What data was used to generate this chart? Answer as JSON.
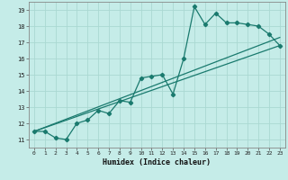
{
  "xlabel": "Humidex (Indice chaleur)",
  "bg_color": "#c5ece8",
  "grid_color": "#aad8d2",
  "line_color": "#1a7a6e",
  "xlim": [
    -0.5,
    23.5
  ],
  "ylim": [
    10.5,
    19.5
  ],
  "xticks": [
    0,
    1,
    2,
    3,
    4,
    5,
    6,
    7,
    8,
    9,
    10,
    11,
    12,
    13,
    14,
    15,
    16,
    17,
    18,
    19,
    20,
    21,
    22,
    23
  ],
  "yticks": [
    11,
    12,
    13,
    14,
    15,
    16,
    17,
    18,
    19
  ],
  "zigzag_x": [
    0,
    1,
    2,
    3,
    4,
    5,
    6,
    7,
    8,
    9,
    10,
    11,
    12,
    13,
    14,
    15,
    16,
    17,
    18,
    19,
    20,
    21,
    22,
    23
  ],
  "zigzag_y": [
    11.5,
    11.5,
    11.1,
    11.0,
    12.0,
    12.2,
    12.8,
    12.6,
    13.4,
    13.3,
    14.8,
    14.9,
    15.0,
    13.8,
    16.0,
    19.2,
    18.1,
    18.8,
    18.2,
    18.2,
    18.1,
    18.0,
    17.5,
    16.8
  ],
  "line1_x": [
    0,
    23
  ],
  "line1_y": [
    11.5,
    16.8
  ],
  "line2_x": [
    0,
    23
  ],
  "line2_y": [
    11.5,
    17.3
  ]
}
